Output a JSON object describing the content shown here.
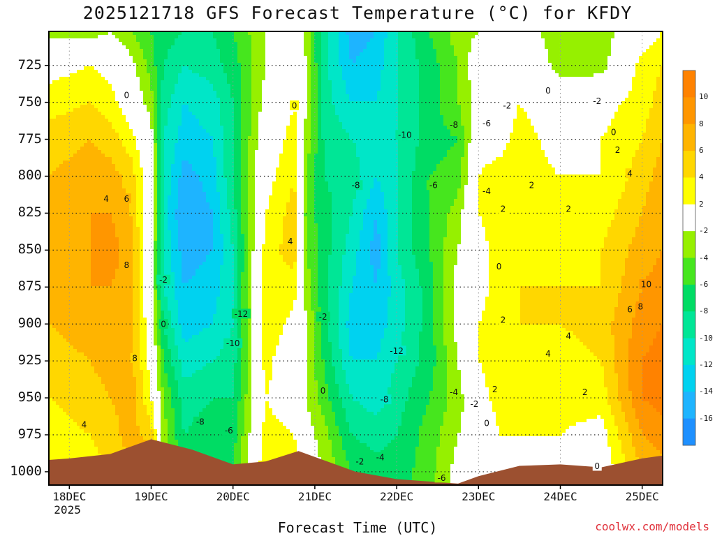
{
  "title": "2025121718 GFS Forecast Temperature (°C) for KFDY",
  "footer": {
    "credit": "coolwx.com/models"
  },
  "colors": {
    "ground": "#9c5030",
    "frame": "#000000",
    "zero_contour": "#c02870",
    "grid_dot": "#222222",
    "x_grid": "#999999",
    "credit": "#e0303a"
  },
  "chart_data": {
    "type": "heatmap",
    "title": "2025121718 GFS Forecast Temperature (°C) for KFDY",
    "xlabel": "Forecast Time (UTC)",
    "ylabel": "",
    "x_ticks": [
      "18DEC",
      "19DEC",
      "20DEC",
      "21DEC",
      "22DEC",
      "23DEC",
      "24DEC",
      "25DEC"
    ],
    "x_year_label": "2025",
    "x_range_days": [
      -0.25,
      7.25
    ],
    "y_ticks": [
      725,
      750,
      775,
      800,
      825,
      850,
      875,
      900,
      925,
      950,
      975,
      1000
    ],
    "y_range_hpa": [
      702,
      1009
    ],
    "y_axis_inverted": true,
    "colorbar": {
      "levels": [
        -16,
        -14,
        -12,
        -10,
        -8,
        -6,
        -4,
        -2,
        2,
        4,
        6,
        8,
        10
      ],
      "colors": [
        "#1e90ff",
        "#1eb4ff",
        "#00d2f0",
        "#00e6c8",
        "#00e696",
        "#00dc64",
        "#46e61e",
        "#96f000",
        "#ffffff",
        "#ffff00",
        "#ffd700",
        "#ffb400",
        "#ff9600",
        "#ff8200"
      ]
    },
    "times_days": [
      -0.25,
      0.25,
      0.5,
      0.75,
      1.0,
      1.15,
      1.4,
      1.75,
      2.0,
      2.4,
      2.75,
      2.9,
      3.1,
      3.45,
      3.75,
      4.0,
      4.4,
      4.75,
      5.0,
      5.25,
      5.5,
      6.0,
      6.5,
      7.0,
      7.25
    ],
    "pressure_levels_hpa": [
      702,
      725,
      750,
      775,
      800,
      825,
      850,
      875,
      900,
      925,
      950,
      975,
      1000
    ],
    "temperature_c": [
      [
        -3,
        1,
        3,
        5,
        6,
        6,
        7,
        7,
        6,
        5,
        4,
        3,
        2
      ],
      [
        -3,
        2,
        4,
        6,
        7,
        8,
        8,
        8,
        7,
        6,
        5,
        4,
        3
      ],
      [
        -2,
        1,
        3,
        5,
        7,
        8,
        9,
        8,
        8,
        7,
        6,
        5,
        4
      ],
      [
        -4,
        -1,
        0,
        3,
        5,
        6,
        7,
        7,
        7,
        7,
        7,
        7,
        6
      ],
      [
        -6,
        -5,
        -3,
        -1,
        0,
        0,
        -1,
        -1,
        0,
        1,
        2,
        5,
        9
      ],
      [
        -7,
        -8,
        -9,
        -10,
        -10,
        -11,
        -10,
        -10,
        -8,
        -6,
        -4,
        -3,
        -2
      ],
      [
        -8,
        -10,
        -12,
        -13,
        -15,
        -16,
        -15,
        -14,
        -13,
        -11,
        -9,
        -8,
        -7
      ],
      [
        -8,
        -9,
        -11,
        -12,
        -13,
        -14,
        -14,
        -13,
        -12,
        -10,
        -8,
        -7,
        -6
      ],
      [
        -6,
        -7,
        -8,
        -8,
        -8,
        -9,
        -10,
        -10,
        -10,
        -9,
        -8,
        -7,
        -6
      ],
      [
        -2,
        -2,
        -1,
        0,
        1,
        2,
        3,
        4,
        4,
        3,
        2,
        3,
        4
      ],
      [
        0,
        1,
        2,
        3,
        4,
        5,
        5,
        3,
        1,
        -1,
        0,
        2,
        3
      ],
      [
        -3,
        -2,
        -2,
        -3,
        -4,
        -5,
        -4,
        -3,
        -2,
        -2,
        -2,
        -1,
        0
      ],
      [
        -9,
        -9,
        -9,
        -8,
        -8,
        -7,
        -7,
        -7,
        -7,
        -6,
        -5,
        -3,
        -2
      ],
      [
        -15,
        -14,
        -12,
        -10,
        -9,
        -10,
        -11,
        -12,
        -13,
        -12,
        -10,
        -8,
        -6
      ],
      [
        -14,
        -13,
        -12,
        -11,
        -12,
        -14,
        -15,
        -14,
        -13,
        -12,
        -11,
        -9,
        -7
      ],
      [
        -10,
        -10,
        -10,
        -10,
        -10,
        -10,
        -10,
        -11,
        -11,
        -10,
        -9,
        -8,
        -7
      ],
      [
        -6,
        -7,
        -7,
        -7,
        -6,
        -6,
        -6,
        -7,
        -7,
        -7,
        -6,
        -5,
        -5
      ],
      [
        -3,
        -4,
        -4,
        -6,
        -5,
        -3,
        -2,
        -1,
        -1,
        -2,
        -3,
        -2,
        -1
      ],
      [
        -2,
        0,
        -1,
        1,
        2,
        2,
        1,
        1,
        2,
        2,
        1,
        -1,
        -1
      ],
      [
        -2,
        0,
        0,
        1,
        3,
        3,
        3,
        3,
        3,
        3,
        3,
        2,
        1
      ],
      [
        -1,
        1,
        2,
        3,
        3,
        3,
        3,
        4,
        4,
        4,
        3,
        2,
        1
      ],
      [
        -3,
        -3,
        0,
        1,
        2,
        2,
        3,
        4,
        4,
        3,
        3,
        2,
        1
      ],
      [
        -3,
        -3,
        1,
        2,
        2,
        3,
        4,
        4,
        5,
        4,
        3,
        1,
        0
      ],
      [
        0,
        3,
        3,
        4,
        5,
        6,
        7,
        8,
        9,
        10,
        10,
        8,
        6
      ],
      [
        2,
        4,
        5,
        6,
        7,
        8,
        8,
        9,
        10,
        11,
        11,
        9,
        7
      ]
    ],
    "surface_pressure_hpa": [
      [
        -0.25,
        992
      ],
      [
        0.0,
        991
      ],
      [
        0.5,
        988
      ],
      [
        1.0,
        978
      ],
      [
        1.5,
        985
      ],
      [
        2.0,
        995
      ],
      [
        2.4,
        993
      ],
      [
        2.8,
        986
      ],
      [
        3.0,
        990
      ],
      [
        3.5,
        1000
      ],
      [
        4.0,
        1005
      ],
      [
        4.5,
        1007
      ],
      [
        4.75,
        1008
      ],
      [
        5.0,
        1003
      ],
      [
        5.5,
        996
      ],
      [
        6.0,
        995
      ],
      [
        6.5,
        997
      ],
      [
        7.0,
        991
      ],
      [
        7.25,
        989
      ]
    ],
    "contour_labels": [
      {
        "value": "0",
        "t": 0.7,
        "p": 745
      },
      {
        "value": "4",
        "t": 0.45,
        "p": 815
      },
      {
        "value": "6",
        "t": 0.7,
        "p": 815
      },
      {
        "value": "8",
        "t": 0.7,
        "p": 860
      },
      {
        "value": "-2",
        "t": 1.15,
        "p": 870
      },
      {
        "value": "0",
        "t": 1.15,
        "p": 900
      },
      {
        "value": "8",
        "t": 0.8,
        "p": 923
      },
      {
        "value": "4",
        "t": 0.18,
        "p": 968
      },
      {
        "value": "-8",
        "t": 1.6,
        "p": 966
      },
      {
        "value": "-6",
        "t": 1.95,
        "p": 972
      },
      {
        "value": "-10",
        "t": 2.0,
        "p": 913
      },
      {
        "value": "-12",
        "t": 2.1,
        "p": 893
      },
      {
        "value": "0",
        "t": 2.75,
        "p": 752
      },
      {
        "value": "4",
        "t": 2.7,
        "p": 844
      },
      {
        "value": "-2",
        "t": 3.1,
        "p": 895
      },
      {
        "value": "0",
        "t": 3.1,
        "p": 945
      },
      {
        "value": "-10",
        "t": 4.1,
        "p": 772
      },
      {
        "value": "-8",
        "t": 3.5,
        "p": 806
      },
      {
        "value": "-6",
        "t": 4.45,
        "p": 806
      },
      {
        "value": "-8",
        "t": 4.7,
        "p": 765
      },
      {
        "value": "-6",
        "t": 5.1,
        "p": 764
      },
      {
        "value": "-4",
        "t": 5.1,
        "p": 810
      },
      {
        "value": "-12",
        "t": 4.0,
        "p": 918
      },
      {
        "value": "-8",
        "t": 3.85,
        "p": 951
      },
      {
        "value": "-4",
        "t": 4.7,
        "p": 946
      },
      {
        "value": "-2",
        "t": 4.95,
        "p": 954
      },
      {
        "value": "-2",
        "t": 3.55,
        "p": 993
      },
      {
        "value": "-4",
        "t": 3.8,
        "p": 990
      },
      {
        "value": "-6",
        "t": 4.55,
        "p": 1004
      },
      {
        "value": "-2",
        "t": 5.35,
        "p": 752
      },
      {
        "value": "0",
        "t": 5.85,
        "p": 742
      },
      {
        "value": "-2",
        "t": 6.45,
        "p": 749
      },
      {
        "value": "0",
        "t": 6.65,
        "p": 770
      },
      {
        "value": "2",
        "t": 6.7,
        "p": 782
      },
      {
        "value": "2",
        "t": 5.3,
        "p": 822
      },
      {
        "value": "0",
        "t": 5.25,
        "p": 861
      },
      {
        "value": "2",
        "t": 5.65,
        "p": 806
      },
      {
        "value": "2",
        "t": 6.1,
        "p": 822
      },
      {
        "value": "4",
        "t": 6.85,
        "p": 798
      },
      {
        "value": "2",
        "t": 5.3,
        "p": 897
      },
      {
        "value": "2",
        "t": 5.2,
        "p": 944
      },
      {
        "value": "0",
        "t": 5.1,
        "p": 967
      },
      {
        "value": "4",
        "t": 5.85,
        "p": 920
      },
      {
        "value": "4",
        "t": 6.1,
        "p": 908
      },
      {
        "value": "2",
        "t": 6.3,
        "p": 946
      },
      {
        "value": "6",
        "t": 6.85,
        "p": 890
      },
      {
        "value": "8",
        "t": 6.98,
        "p": 888
      },
      {
        "value": "10",
        "t": 7.05,
        "p": 873
      },
      {
        "value": "0",
        "t": 6.45,
        "p": 996
      }
    ]
  }
}
